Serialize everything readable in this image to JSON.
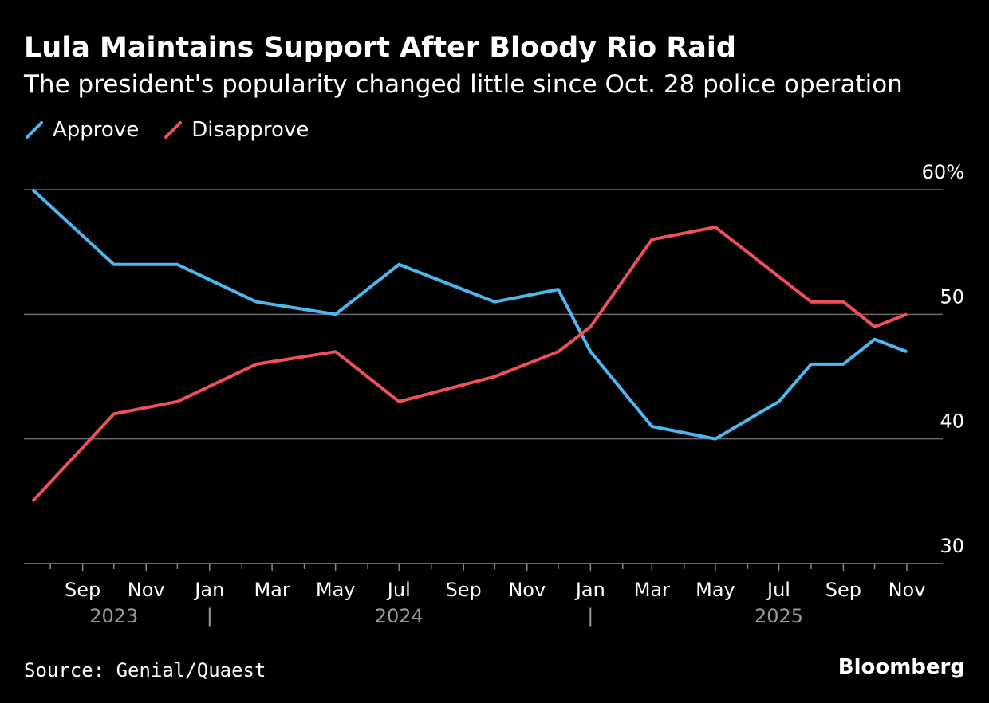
{
  "header": {
    "title": "Lula Maintains Support After Bloody Rio Raid",
    "subtitle": "The president's popularity changed little since Oct. 28 police operation"
  },
  "footer": {
    "source": "Source: Genial/Quaest",
    "brand": "Bloomberg"
  },
  "chart_data": {
    "type": "line",
    "title": "Lula Maintains Support After Bloody Rio Raid",
    "subtitle": "The president's popularity changed little since Oct. 28 police operation",
    "xlabel": "",
    "ylabel": "",
    "x_unit": "month",
    "x_range": [
      "2023-07-15",
      "2025-11-20"
    ],
    "ylim": [
      30,
      60
    ],
    "y_ticks": [
      {
        "value": 30,
        "label": "30"
      },
      {
        "value": 40,
        "label": "40"
      },
      {
        "value": 50,
        "label": "50"
      },
      {
        "value": 60,
        "label": "60%"
      }
    ],
    "gridlines": [
      40,
      50,
      60
    ],
    "month_ticks": [
      {
        "date": "2023-08-01",
        "label": ""
      },
      {
        "date": "2023-09-01",
        "label": "Sep"
      },
      {
        "date": "2023-10-01",
        "label": ""
      },
      {
        "date": "2023-11-01",
        "label": "Nov"
      },
      {
        "date": "2023-12-01",
        "label": ""
      },
      {
        "date": "2024-01-01",
        "label": "Jan"
      },
      {
        "date": "2024-02-01",
        "label": ""
      },
      {
        "date": "2024-03-01",
        "label": "Mar"
      },
      {
        "date": "2024-04-01",
        "label": ""
      },
      {
        "date": "2024-05-01",
        "label": "May"
      },
      {
        "date": "2024-06-01",
        "label": ""
      },
      {
        "date": "2024-07-01",
        "label": "Jul"
      },
      {
        "date": "2024-08-01",
        "label": ""
      },
      {
        "date": "2024-09-01",
        "label": "Sep"
      },
      {
        "date": "2024-10-01",
        "label": ""
      },
      {
        "date": "2024-11-01",
        "label": "Nov"
      },
      {
        "date": "2024-12-01",
        "label": ""
      },
      {
        "date": "2025-01-01",
        "label": "Jan"
      },
      {
        "date": "2025-02-01",
        "label": ""
      },
      {
        "date": "2025-03-01",
        "label": "Mar"
      },
      {
        "date": "2025-04-01",
        "label": ""
      },
      {
        "date": "2025-05-01",
        "label": "May"
      },
      {
        "date": "2025-06-01",
        "label": ""
      },
      {
        "date": "2025-07-01",
        "label": "Jul"
      },
      {
        "date": "2025-08-01",
        "label": ""
      },
      {
        "date": "2025-09-01",
        "label": "Sep"
      },
      {
        "date": "2025-10-01",
        "label": ""
      },
      {
        "date": "2025-11-01",
        "label": "Nov"
      }
    ],
    "year_labels": [
      {
        "label": "2023",
        "center": "2023-10-01"
      },
      {
        "label": "2024",
        "center": "2024-07-01"
      },
      {
        "label": "2025",
        "center": "2025-07-01"
      }
    ],
    "year_dividers": [
      "2024-01-01",
      "2025-01-01"
    ],
    "divider_glyph": "|",
    "legend_position": "top-left",
    "series": [
      {
        "name": "Approve",
        "color": "#4db8f0",
        "points": [
          {
            "x": "2023-07-15",
            "y": 60
          },
          {
            "x": "2023-10-01",
            "y": 54
          },
          {
            "x": "2023-12-01",
            "y": 54
          },
          {
            "x": "2024-02-15",
            "y": 51
          },
          {
            "x": "2024-05-01",
            "y": 50
          },
          {
            "x": "2024-07-01",
            "y": 54
          },
          {
            "x": "2024-10-01",
            "y": 51
          },
          {
            "x": "2024-12-01",
            "y": 52
          },
          {
            "x": "2025-01-01",
            "y": 47
          },
          {
            "x": "2025-03-01",
            "y": 41
          },
          {
            "x": "2025-05-01",
            "y": 40
          },
          {
            "x": "2025-07-01",
            "y": 43
          },
          {
            "x": "2025-08-01",
            "y": 46
          },
          {
            "x": "2025-09-01",
            "y": 46
          },
          {
            "x": "2025-10-01",
            "y": 48
          },
          {
            "x": "2025-11-01",
            "y": 47
          }
        ]
      },
      {
        "name": "Disapprove",
        "color": "#f0505a",
        "points": [
          {
            "x": "2023-07-15",
            "y": 35
          },
          {
            "x": "2023-10-01",
            "y": 42
          },
          {
            "x": "2023-12-01",
            "y": 43
          },
          {
            "x": "2024-02-15",
            "y": 46
          },
          {
            "x": "2024-05-01",
            "y": 47
          },
          {
            "x": "2024-07-01",
            "y": 43
          },
          {
            "x": "2024-10-01",
            "y": 45
          },
          {
            "x": "2024-12-01",
            "y": 47
          },
          {
            "x": "2025-01-01",
            "y": 49
          },
          {
            "x": "2025-03-01",
            "y": 56
          },
          {
            "x": "2025-05-01",
            "y": 57
          },
          {
            "x": "2025-08-01",
            "y": 51
          },
          {
            "x": "2025-09-01",
            "y": 51
          },
          {
            "x": "2025-10-01",
            "y": 49
          },
          {
            "x": "2025-11-01",
            "y": 50
          }
        ]
      }
    ],
    "colors": {
      "background": "#000000",
      "grid": "#6b6b6b",
      "axis": "#8a8a8a",
      "text": "#ffffff",
      "year_text": "#9a9a9a"
    }
  }
}
